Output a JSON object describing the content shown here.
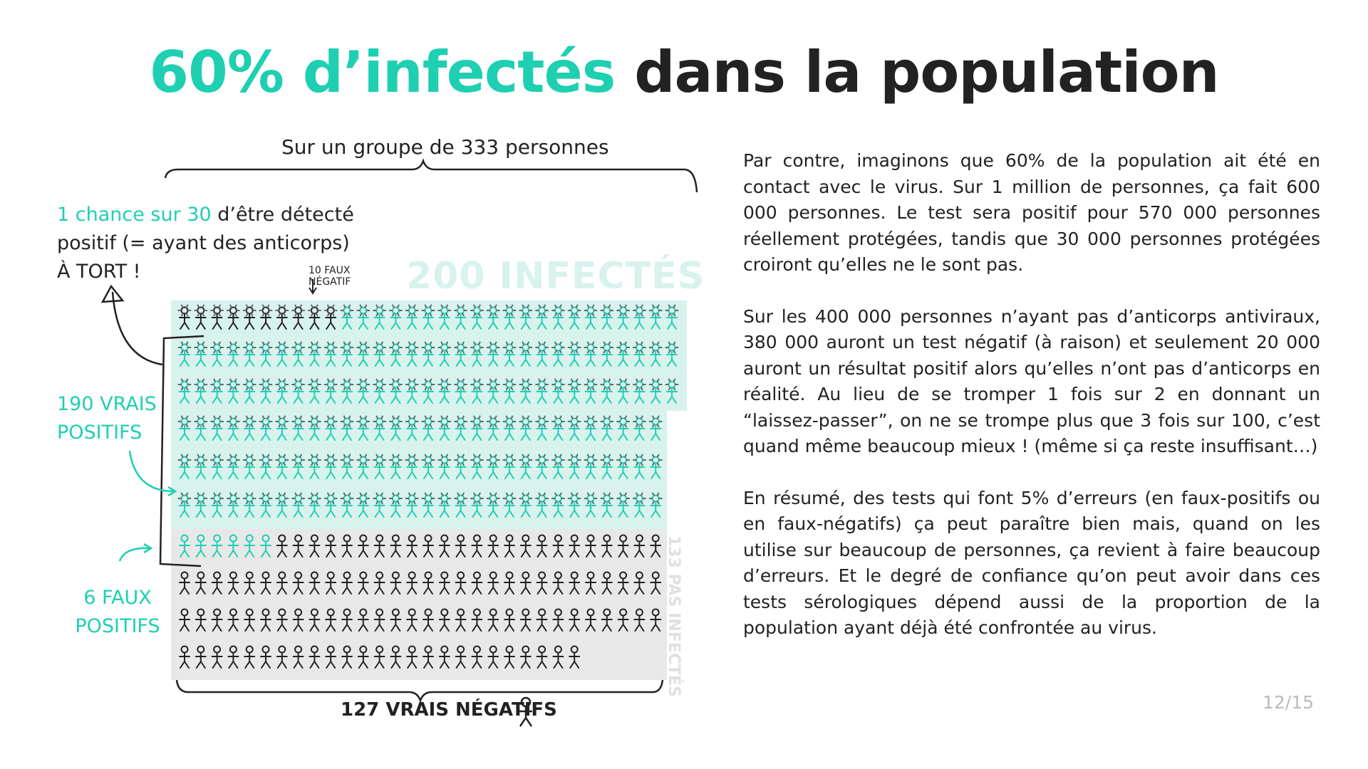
{
  "title": {
    "accent_text": "60% d’infectés",
    "rest_text": " dans la population"
  },
  "diagram": {
    "group_label": "Sur un groupe de 333 personnes",
    "chance_note": {
      "highlight": "1 chance sur 30",
      "rest": " d’être détecté positif (= ayant des anticorps) À TORT !"
    },
    "false_negative_label_line1": "10 FAUX",
    "false_negative_label_line2": "NÉGATIF",
    "infected_label": "200 INFECTÉS",
    "true_positive_label": "190 VRAIS POSITIFS",
    "false_positive_label": "6 FAUX POSITIFS",
    "true_negative_label": "127 VRAIS NÉGATIFS",
    "not_infected_label": "133 PAS INFECTÉS",
    "counts": {
      "total": 333,
      "infected": 200,
      "false_negative": 10,
      "true_positive": 190,
      "false_positive": 6,
      "true_negative": 127,
      "not_infected": 133
    },
    "colors": {
      "accent": "#1fcfb2",
      "infected_bg": "#d8f2ee",
      "not_infected_bg": "#e8e8e8",
      "dark": "#222222",
      "virus": "#666666"
    }
  },
  "paragraphs": [
    "Par contre, imaginons que 60% de la population ait été en contact avec le virus. Sur 1 million de personnes, ça fait 600 000 personnes. Le test sera positif pour 570 000 personnes réellement protégées, tandis que 30 000 personnes protégées croiront qu’elles ne le sont pas.",
    "Sur les 400 000 personnes n’ayant pas d’anticorps antiviraux, 380 000 auront un test négatif (à raison) et seulement 20 000 auront un résultat positif alors qu’elles n’ont pas d’anticorps en réalité. Au lieu de se tromper 1 fois sur 2 en donnant un “laissez-passer”, on ne se trompe plus que 3 fois sur 100, c’est quand même beaucoup mieux ! (même si ça reste insuffisant…)",
    "En résumé, des tests qui font 5% d’erreurs (en faux-positifs ou en faux-négatifs) ça peut paraître bien mais, quand on les utilise sur beaucoup de personnes, ça revient à faire beaucoup d’erreurs. Et le degré de confiance qu’on peut avoir dans ces tests sérologiques dépend aussi de la proportion de la population ayant déjà été confrontée au virus."
  ],
  "page_number": "12/15"
}
